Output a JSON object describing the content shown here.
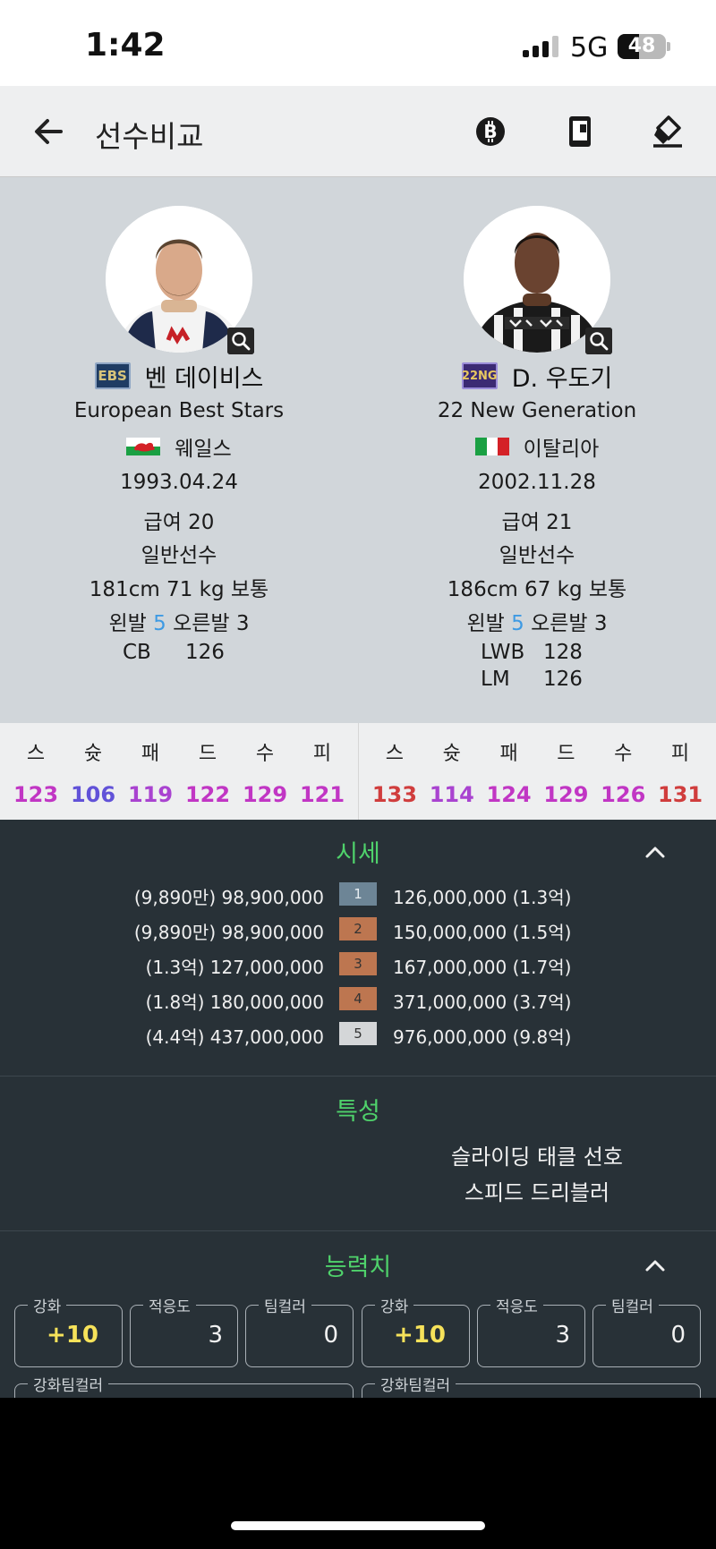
{
  "status_bar": {
    "time": "1:42",
    "network": "5G",
    "battery": "48"
  },
  "app_bar": {
    "title": "선수비교",
    "icons": [
      "back-arrow-icon",
      "bitcoin-icon",
      "phone-card-icon",
      "eraser-icon"
    ]
  },
  "players": [
    {
      "season_badge": "EBS",
      "badge_color": "#1f3c63",
      "name": "벤 데이비스",
      "season": "European Best Stars",
      "nation": "웨일스",
      "birth": "1993.04.24",
      "salary": "급여 20",
      "grade": "일반선수",
      "body": "181cm 71 kg 보통",
      "foot_left_label": "왼발",
      "foot_left": "5",
      "foot_right_label": "오른발",
      "foot_right": "3",
      "positions": [
        {
          "pos": "CB",
          "ovr": "126"
        }
      ],
      "stats": [
        "123",
        "106",
        "119",
        "122",
        "129",
        "121"
      ],
      "stat_colors": [
        "#c136c4",
        "#6152d8",
        "#a943d0",
        "#c136c4",
        "#c136c4",
        "#c136c4"
      ],
      "traits": [],
      "enhance": "+10",
      "adapt": "3",
      "teamcolor": "0",
      "enhance_teamcolor_label": "강화팀컬러"
    },
    {
      "season_badge": "22NG",
      "badge_color": "#3b2a73",
      "name": "D. 우도기",
      "season": "22 New Generation",
      "nation": "이탈리아",
      "birth": "2002.11.28",
      "salary": "급여 21",
      "grade": "일반선수",
      "body": "186cm 67 kg 보통",
      "foot_left_label": "왼발",
      "foot_left": "5",
      "foot_right_label": "오른발",
      "foot_right": "3",
      "positions": [
        {
          "pos": "LWB",
          "ovr": "128"
        },
        {
          "pos": "LM",
          "ovr": "126"
        }
      ],
      "stats": [
        "133",
        "114",
        "124",
        "129",
        "126",
        "131"
      ],
      "stat_colors": [
        "#d03d3d",
        "#a943d0",
        "#c136c4",
        "#c136c4",
        "#c136c4",
        "#d03d3d"
      ],
      "traits": [
        "슬라이딩 태클 선호",
        "스피드 드리블러"
      ],
      "enhance": "+10",
      "adapt": "3",
      "teamcolor": "0",
      "enhance_teamcolor_label": "강화팀컬러"
    }
  ],
  "stat_labels": [
    "스",
    "슛",
    "패",
    "드",
    "수",
    "피"
  ],
  "price_section": {
    "title": "시세",
    "rows": [
      {
        "left": "(9,890만) 98,900,000",
        "grade": "1",
        "right": "126,000,000 (1.3억)",
        "badge_color": "#6d8596"
      },
      {
        "left": "(9,890만) 98,900,000",
        "grade": "2",
        "right": "150,000,000 (1.5억)",
        "badge_color": "#bd7650"
      },
      {
        "left": "(1.3억) 127,000,000",
        "grade": "3",
        "right": "167,000,000 (1.7억)",
        "badge_color": "#bd7650"
      },
      {
        "left": "(1.8억) 180,000,000",
        "grade": "4",
        "right": "371,000,000 (3.7억)",
        "badge_color": "#bd7650"
      },
      {
        "left": "(4.4억) 437,000,000",
        "grade": "5",
        "right": "976,000,000 (9.8억)",
        "badge_color": "#d4d6d8"
      }
    ]
  },
  "traits_section": {
    "title": "특성"
  },
  "ability_section": {
    "title": "능력치",
    "labels": {
      "enhance": "강화",
      "adapt": "적응도",
      "teamcolor": "팀컬러"
    }
  }
}
